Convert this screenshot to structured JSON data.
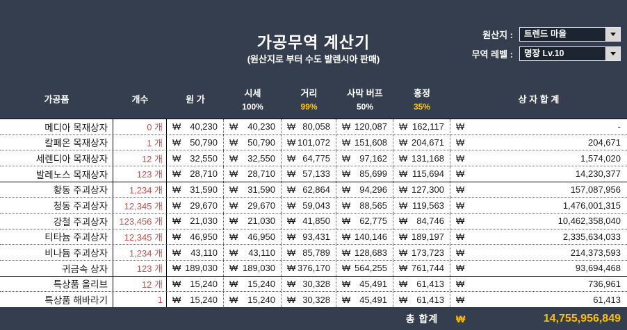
{
  "header": {
    "title": "가공무역 계산기",
    "subtitle": "(원산지로 부터 수도 발렌시아 판매)",
    "origin_label": "원산지 :",
    "origin_value": "트렌드 마을",
    "trade_level_label": "무역 레벨 :",
    "trade_level_value": "명장 Lv.10"
  },
  "currency_symbol": "₩",
  "colors": {
    "background": "#343E4F",
    "accent_gold": "#FFC000",
    "count_red": "#C5504C"
  },
  "table": {
    "columns": [
      {
        "label": "가공품",
        "percent": ""
      },
      {
        "label": "개수",
        "percent": ""
      },
      {
        "label": "원 가",
        "percent": ""
      },
      {
        "label": "시세",
        "percent": "100%"
      },
      {
        "label": "거리",
        "percent": "99%"
      },
      {
        "label": "사막 버프",
        "percent": "50%"
      },
      {
        "label": "흥정",
        "percent": "35%"
      },
      {
        "label": "상 자 합 계",
        "percent": ""
      }
    ],
    "rows": [
      {
        "name": "메디아 목재상자",
        "count": "0 개",
        "cost": "40,230",
        "market": "40,230",
        "distance": "80,058",
        "desert": "120,087",
        "bargain": "162,117",
        "total": "-",
        "group_end": false
      },
      {
        "name": "칼페온 목재상자",
        "count": "1 개",
        "cost": "50,790",
        "market": "50,790",
        "distance": "101,072",
        "desert": "151,608",
        "bargain": "204,671",
        "total": "204,671",
        "group_end": false
      },
      {
        "name": "세렌디아 목재상자",
        "count": "12 개",
        "cost": "32,550",
        "market": "32,550",
        "distance": "64,775",
        "desert": "97,162",
        "bargain": "131,168",
        "total": "1,574,020",
        "group_end": false
      },
      {
        "name": "발레노스 목재상자",
        "count": "123 개",
        "cost": "28,710",
        "market": "28,710",
        "distance": "57,133",
        "desert": "85,699",
        "bargain": "115,694",
        "total": "14,230,377",
        "group_end": true
      },
      {
        "name": "황동 주괴상자",
        "count": "1,234 개",
        "cost": "31,590",
        "market": "31,590",
        "distance": "62,864",
        "desert": "94,296",
        "bargain": "127,300",
        "total": "157,087,956",
        "group_end": false
      },
      {
        "name": "청동 주괴상자",
        "count": "12,345 개",
        "cost": "29,670",
        "market": "29,670",
        "distance": "59,043",
        "desert": "88,565",
        "bargain": "119,563",
        "total": "1,476,001,315",
        "group_end": false
      },
      {
        "name": "강철 주괴상자",
        "count": "123,456 개",
        "cost": "21,030",
        "market": "21,030",
        "distance": "41,850",
        "desert": "62,775",
        "bargain": "84,746",
        "total": "10,462,358,040",
        "group_end": false
      },
      {
        "name": "티타늄 주괴상자",
        "count": "12,345 개",
        "cost": "46,950",
        "market": "46,950",
        "distance": "93,431",
        "desert": "140,146",
        "bargain": "189,197",
        "total": "2,335,634,033",
        "group_end": false
      },
      {
        "name": "비나듐 주괴상자",
        "count": "1,234 개",
        "cost": "43,110",
        "market": "43,110",
        "distance": "85,789",
        "desert": "128,683",
        "bargain": "173,723",
        "total": "214,373,593",
        "group_end": false
      },
      {
        "name": "귀금속 상자",
        "count": "123 개",
        "cost": "189,030",
        "market": "189,030",
        "distance": "376,170",
        "desert": "564,255",
        "bargain": "761,744",
        "total": "93,694,468",
        "group_end": true
      },
      {
        "name": "특상품 올리브",
        "count": "12 개",
        "cost": "15,240",
        "market": "15,240",
        "distance": "30,328",
        "desert": "45,491",
        "bargain": "61,413",
        "total": "736,961",
        "group_end": false
      },
      {
        "name": "특상품 해바라기",
        "count": "1",
        "cost": "15,240",
        "market": "15,240",
        "distance": "30,328",
        "desert": "45,491",
        "bargain": "61,413",
        "total": "61,413",
        "group_end": false
      }
    ]
  },
  "footer": {
    "total_label": "총 합계",
    "currency": "₩",
    "total_value": "14,755,956,849"
  }
}
